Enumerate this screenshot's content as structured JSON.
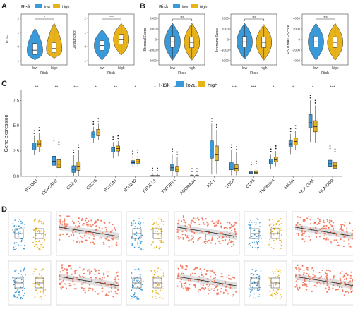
{
  "colors": {
    "low": "#3a9ad9",
    "high": "#e8b21a",
    "scatter": "#f26b4f",
    "fit": "#2a2a2a",
    "band": "#c8c8c8"
  },
  "legend": {
    "title": "Risk",
    "low": "low",
    "high": "high"
  },
  "panelA": {
    "letter": "A",
    "title": "",
    "charts": [
      {
        "ylabel": "TIDE",
        "xlabel": "Risk",
        "sig": "*",
        "ticks": [
          "2",
          "1",
          "0",
          "-1"
        ],
        "categories": [
          "low",
          "high"
        ]
      },
      {
        "ylabel": "Dysfunction",
        "xlabel": "Risk",
        "sig": "***",
        "ticks": [
          "2",
          "1",
          "0",
          "-1"
        ],
        "categories": [
          "low",
          "high"
        ]
      }
    ]
  },
  "panelB": {
    "letter": "B",
    "charts": [
      {
        "ylabel": "StromalScore",
        "xlabel": "Risk",
        "sig": "ns",
        "ticks": [
          "2000",
          "1000",
          "0",
          "-1000",
          "-2000"
        ],
        "categories": [
          "low",
          "high"
        ]
      },
      {
        "ylabel": "ImmuneScore",
        "xlabel": "Risk",
        "sig": "ns",
        "ticks": [
          "2000",
          "1000",
          "0",
          "-1000",
          "-2000"
        ],
        "categories": [
          "low",
          "high"
        ]
      },
      {
        "ylabel": "ESTIMATEScore",
        "xlabel": "Risk",
        "sig": "ns",
        "ticks": [
          "4000",
          "2000",
          "0",
          "-2000",
          "-4000"
        ],
        "categories": [
          "low",
          "high"
        ]
      }
    ]
  },
  "panelC": {
    "letter": "C",
    "ylabel": "Gene expression",
    "yticks": [
      "7.5",
      "5.0",
      "2.5",
      "0.0"
    ]
  },
  "panelD": {
    "letter": "D"
  },
  "chart_data": [
    {
      "type": "box",
      "title": "",
      "xlabel": "",
      "ylabel": "Gene expression",
      "ylim": [
        0,
        8.5
      ],
      "legend_title": "Risk",
      "legend_position": "top",
      "categories": [
        "BTN3A1",
        "CEACAM1",
        "CD209",
        "CD276",
        "BTN2A1",
        "BTN2A2",
        "KIR2DL1",
        "TNFSF14",
        "ADORA2A",
        "IDO1",
        "TDO2",
        "CD28",
        "TNFRSF4",
        "SIRPA",
        "HLA-DMA",
        "HLA-DOB"
      ],
      "significance": [
        "**",
        "**",
        "***",
        "*",
        "**",
        "*",
        "*",
        "**",
        "***",
        "*",
        "***",
        "***",
        "*",
        "*",
        "*",
        "***"
      ],
      "series": [
        {
          "name": "low",
          "median": [
            2.9,
            1.5,
            0.7,
            4.1,
            2.6,
            1.35,
            0.05,
            0.85,
            0.05,
            2.6,
            0.95,
            0.35,
            1.45,
            3.2,
            5.3,
            1.25
          ],
          "q1": [
            2.6,
            1.1,
            0.4,
            3.8,
            2.4,
            1.2,
            0.0,
            0.55,
            0.02,
            1.8,
            0.65,
            0.25,
            1.25,
            2.9,
            4.8,
            1.0
          ],
          "q3": [
            3.3,
            2.0,
            1.05,
            4.4,
            2.85,
            1.55,
            0.1,
            1.2,
            0.1,
            3.5,
            1.35,
            0.45,
            1.7,
            3.55,
            6.1,
            1.6
          ],
          "min": [
            2.1,
            0.3,
            0.0,
            3.3,
            1.8,
            0.9,
            0.0,
            0.0,
            0.0,
            0.2,
            0.1,
            0.05,
            0.7,
            2.2,
            3.4,
            0.3
          ],
          "max": [
            4.0,
            3.3,
            2.1,
            4.9,
            3.4,
            2.0,
            0.3,
            2.2,
            0.25,
            5.2,
            2.6,
            0.9,
            2.2,
            4.2,
            7.5,
            2.5
          ]
        },
        {
          "name": "high",
          "median": [
            3.2,
            1.2,
            1.0,
            4.3,
            2.75,
            1.45,
            0.05,
            0.7,
            0.05,
            2.2,
            0.8,
            0.4,
            1.65,
            3.45,
            4.9,
            1.05
          ],
          "q1": [
            2.9,
            0.85,
            0.6,
            4.0,
            2.5,
            1.3,
            0.0,
            0.45,
            0.02,
            1.55,
            0.5,
            0.3,
            1.45,
            3.1,
            4.4,
            0.8
          ],
          "q3": [
            3.6,
            1.65,
            1.45,
            4.65,
            3.0,
            1.65,
            0.1,
            1.0,
            0.1,
            3.0,
            1.15,
            0.55,
            1.9,
            3.8,
            5.5,
            1.35
          ],
          "min": [
            2.4,
            0.2,
            0.0,
            3.6,
            2.0,
            1.0,
            0.0,
            0.0,
            0.0,
            0.3,
            0.1,
            0.05,
            1.0,
            2.6,
            3.3,
            0.2
          ],
          "max": [
            4.3,
            2.9,
            2.6,
            5.2,
            3.5,
            2.1,
            0.3,
            1.9,
            0.25,
            4.6,
            2.4,
            1.0,
            2.5,
            4.5,
            7.0,
            2.2
          ]
        }
      ]
    },
    {
      "type": "violin",
      "title": "",
      "xlabel": "Risk",
      "ylabel": "TIDE",
      "categories": [
        "low",
        "high"
      ],
      "significance": "*",
      "series": [
        {
          "name": "low",
          "median": -0.8,
          "q1": -1.05,
          "q3": -0.4,
          "min": -1.4,
          "max": 0.5
        },
        {
          "name": "high",
          "median": -0.7,
          "q1": -0.95,
          "q3": -0.35,
          "min": -1.3,
          "max": 0.8
        }
      ]
    },
    {
      "type": "violin",
      "title": "",
      "xlabel": "Risk",
      "ylabel": "Dysfunction",
      "categories": [
        "low",
        "high"
      ],
      "significance": "***",
      "series": [
        {
          "name": "low",
          "median": 0.2,
          "q1": -0.2,
          "q3": 0.6,
          "min": -1.0,
          "max": 1.5
        },
        {
          "name": "high",
          "median": 0.7,
          "q1": 0.3,
          "q3": 1.1,
          "min": -0.6,
          "max": 2.0
        }
      ]
    },
    {
      "type": "violin",
      "title": "",
      "xlabel": "Risk",
      "ylabel": "StromalScore",
      "categories": [
        "low",
        "high"
      ],
      "significance": "ns",
      "series": [
        {
          "name": "low",
          "median": 0,
          "q1": -500,
          "q3": 500,
          "min": -1700,
          "max": 1700
        },
        {
          "name": "high",
          "median": -50,
          "q1": -550,
          "q3": 450,
          "min": -1700,
          "max": 1700
        }
      ]
    },
    {
      "type": "violin",
      "title": "",
      "xlabel": "Risk",
      "ylabel": "ImmuneScore",
      "categories": [
        "low",
        "high"
      ],
      "significance": "ns",
      "series": [
        {
          "name": "low",
          "median": 50,
          "q1": -450,
          "q3": 550,
          "min": -1600,
          "max": 1800
        },
        {
          "name": "high",
          "median": 0,
          "q1": -500,
          "q3": 500,
          "min": -1700,
          "max": 1700
        }
      ]
    },
    {
      "type": "violin",
      "title": "",
      "xlabel": "Risk",
      "ylabel": "ESTIMATEScore",
      "categories": [
        "low",
        "high"
      ],
      "significance": "ns",
      "series": [
        {
          "name": "low",
          "median": 0,
          "q1": -900,
          "q3": 1000,
          "min": -3300,
          "max": 3300
        },
        {
          "name": "high",
          "median": -100,
          "q1": -1000,
          "q3": 900,
          "min": -3300,
          "max": 3300
        }
      ]
    }
  ]
}
